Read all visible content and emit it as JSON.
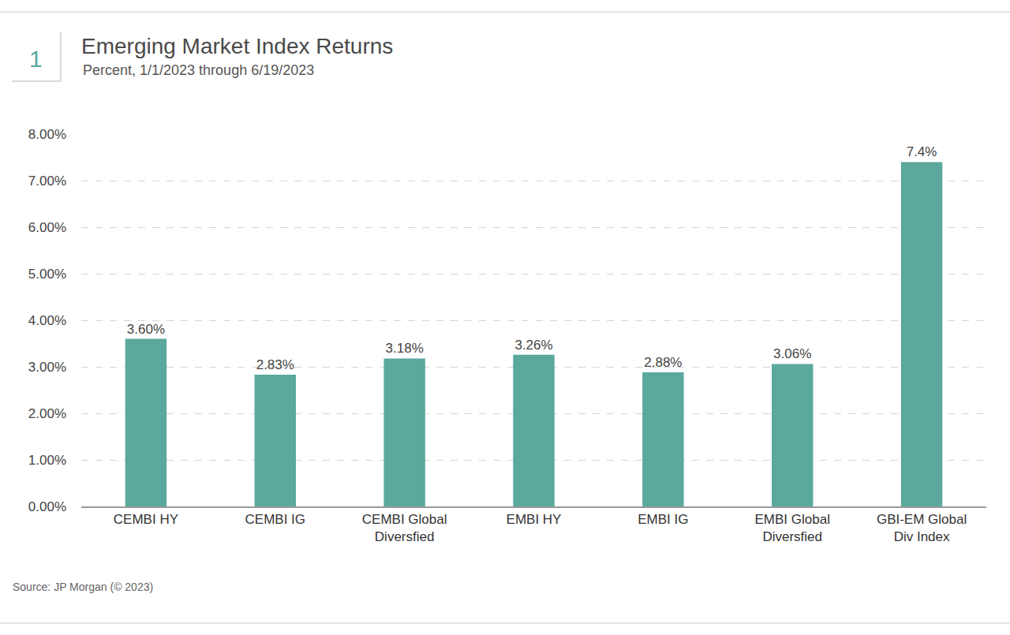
{
  "chart_data": {
    "type": "bar",
    "figure_number": "1",
    "title": "Emerging Market Index Returns",
    "subtitle": "Percent, 1/1/2023 through 6/19/2023",
    "source": "Source: JP Morgan (© 2023)",
    "categories": [
      "CEMBI HY",
      "CEMBI IG",
      "CEMBI Global Diversfied",
      "EMBI HY",
      "EMBI IG",
      "EMBI Global Diversfied",
      "GBI-EM Global Div Index"
    ],
    "values": [
      3.6,
      2.83,
      3.18,
      3.26,
      2.88,
      3.06,
      7.4
    ],
    "value_labels": [
      "3.60%",
      "2.83%",
      "3.18%",
      "3.26%",
      "2.88%",
      "3.06%",
      "7.4%"
    ],
    "color": "#5ba89d",
    "ylim": [
      0,
      8
    ],
    "yticks": [
      {
        "value": 0,
        "label": "0.00%"
      },
      {
        "value": 1,
        "label": "1.00%"
      },
      {
        "value": 2,
        "label": "2.00%"
      },
      {
        "value": 3,
        "label": "3.00%"
      },
      {
        "value": 4,
        "label": "4.00%"
      },
      {
        "value": 5,
        "label": "5.00%"
      },
      {
        "value": 6,
        "label": "6.00%"
      },
      {
        "value": 7,
        "label": "7.00%"
      },
      {
        "value": 8,
        "label": "8.00%"
      }
    ],
    "grid": true,
    "data_labels": true
  }
}
